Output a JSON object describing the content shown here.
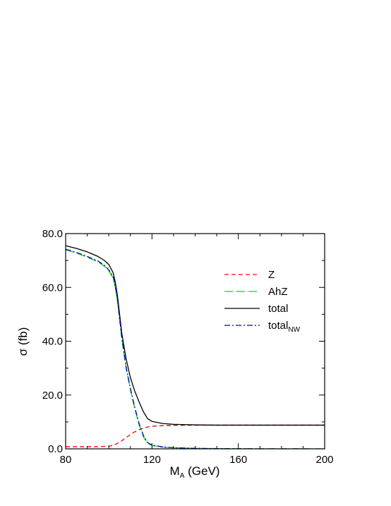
{
  "chart_data": {
    "type": "line",
    "xlabel_main": "M",
    "xlabel_sub": "A",
    "xlabel_rest": " (GeV)",
    "ylabel": "σ (fb)",
    "xlim": [
      80,
      200
    ],
    "ylim": [
      0,
      80
    ],
    "xticks": [
      80,
      120,
      160,
      200
    ],
    "xtick_labels": [
      "80",
      "120",
      "160",
      "200"
    ],
    "yticks": [
      0,
      20,
      40,
      60,
      80
    ],
    "ytick_labels": [
      "0.0",
      "20.0",
      "40.0",
      "60.0",
      "80.0"
    ],
    "grid": false,
    "legend_position": "top-right",
    "series": [
      {
        "name": "Z",
        "color": "#ff0000",
        "dash": "dashed",
        "x": [
          80,
          90,
          95,
          100,
          102,
          104,
          106,
          108,
          110,
          112,
          114,
          116,
          118,
          120,
          125,
          130,
          140,
          150,
          160,
          180,
          200
        ],
        "y": [
          0.8,
          0.8,
          0.8,
          1.0,
          1.3,
          2.0,
          3.0,
          4.2,
          5.3,
          6.3,
          7.1,
          7.7,
          8.1,
          8.4,
          8.6,
          8.7,
          8.8,
          8.8,
          8.8,
          8.8,
          8.8
        ]
      },
      {
        "name": "AhZ",
        "color": "#00dd00",
        "dash": "long-dashed",
        "x": [
          80,
          85,
          90,
          95,
          98,
          100,
          102,
          103,
          104,
          105,
          106,
          108,
          110,
          112,
          114,
          116,
          118,
          120,
          125,
          130,
          140,
          150,
          160,
          180,
          200
        ],
        "y": [
          74.0,
          72.8,
          71.2,
          69.5,
          67.8,
          66.2,
          63.5,
          60.0,
          55.0,
          48.0,
          41.0,
          30.0,
          22.0,
          15.0,
          9.0,
          4.5,
          2.0,
          1.2,
          0.6,
          0.4,
          0.2,
          0.1,
          0.05,
          0.02,
          0.0
        ]
      },
      {
        "name": "total",
        "color": "#000000",
        "dash": "solid",
        "x": [
          80,
          85,
          90,
          95,
          98,
          100,
          102,
          103,
          104,
          105,
          106,
          108,
          110,
          112,
          114,
          116,
          118,
          120,
          125,
          130,
          140,
          150,
          160,
          180,
          200
        ],
        "y": [
          75.5,
          74.5,
          73.2,
          71.5,
          70.0,
          68.5,
          65.5,
          62.0,
          57.0,
          50.0,
          43.0,
          33.5,
          26.5,
          21.5,
          17.5,
          13.8,
          11.2,
          10.2,
          9.4,
          9.1,
          8.9,
          8.8,
          8.8,
          8.8,
          8.8
        ]
      },
      {
        "name": "total",
        "name_sub": "NW",
        "color": "#0000cc",
        "dash": "dash-dot",
        "x": [
          80,
          85,
          90,
          95,
          98,
          100,
          102,
          103,
          104,
          105,
          106,
          108,
          110,
          112,
          114,
          116,
          118,
          120,
          125,
          130,
          140,
          150,
          160,
          180,
          200
        ],
        "y": [
          74.2,
          73.0,
          71.5,
          69.8,
          68.2,
          66.5,
          64.0,
          60.5,
          55.5,
          48.5,
          41.5,
          30.5,
          22.5,
          15.5,
          9.5,
          5.0,
          2.3,
          1.4,
          0.7,
          0.4,
          0.2,
          0.1,
          0.05,
          0.02,
          0.0
        ]
      }
    ]
  }
}
